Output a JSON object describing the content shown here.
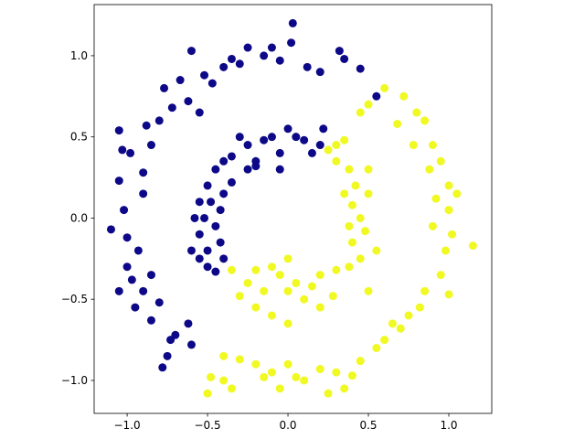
{
  "chart_data": {
    "type": "scatter",
    "xlim": [
      -1.205,
      1.267
    ],
    "ylim": [
      -1.203,
      1.315
    ],
    "xticks": [
      {
        "value": -1.0,
        "label": "−1.0"
      },
      {
        "value": -0.5,
        "label": "−0.5"
      },
      {
        "value": 0.0,
        "label": "0.0"
      },
      {
        "value": 0.5,
        "label": "0.5"
      },
      {
        "value": 1.0,
        "label": "1.0"
      }
    ],
    "yticks": [
      {
        "value": -1.0,
        "label": "−1.0"
      },
      {
        "value": -0.5,
        "label": "−0.5"
      },
      {
        "value": 0.0,
        "label": "0.0"
      },
      {
        "value": 0.5,
        "label": "0.5"
      },
      {
        "value": 1.0,
        "label": "1.0"
      }
    ],
    "series": [
      {
        "color": "#0d0887",
        "x": [
          -1.1,
          -1.05,
          -1.0,
          -1.0,
          -1.02,
          -1.05,
          -1.03,
          -1.05,
          -0.98,
          -0.9,
          -0.9,
          -0.85,
          -0.88,
          -0.8,
          -0.77,
          -0.72,
          -0.67,
          -0.62,
          -0.55,
          -0.52,
          -0.47,
          -0.4,
          -0.35,
          -0.3,
          -0.25,
          -0.15,
          -0.1,
          -0.05,
          0.02,
          0.03,
          0.12,
          0.2,
          0.32,
          0.35,
          0.45,
          0.55,
          -0.6,
          -0.62,
          -0.7,
          -0.75,
          -0.8,
          -0.85,
          -0.9,
          -0.93,
          -0.97,
          -0.78,
          -0.73,
          -0.6,
          -0.85,
          -0.95,
          -0.55,
          -0.5,
          -0.6,
          -0.55,
          -0.5,
          -0.45,
          -0.52,
          -0.55,
          -0.5,
          -0.45,
          -0.4,
          -0.35,
          -0.3,
          -0.25,
          -0.2,
          -0.15,
          -0.1,
          -0.05,
          0.0,
          0.05,
          0.1,
          0.15,
          0.2,
          -0.48,
          -0.42,
          -0.45,
          -0.4,
          -0.35,
          -0.25,
          -0.2,
          -0.58,
          -0.42,
          0.22,
          -0.05,
          -0.4
        ],
        "y": [
          -0.07,
          -0.45,
          -0.3,
          -0.12,
          0.05,
          0.23,
          0.42,
          0.54,
          0.4,
          0.28,
          0.15,
          0.45,
          0.57,
          0.6,
          0.8,
          0.68,
          0.85,
          0.72,
          0.65,
          0.88,
          0.83,
          0.93,
          0.98,
          0.95,
          1.05,
          1.0,
          1.05,
          0.97,
          1.08,
          1.2,
          0.93,
          0.9,
          1.03,
          0.98,
          0.92,
          0.75,
          1.03,
          -0.65,
          -0.72,
          -0.85,
          -0.52,
          -0.35,
          -0.45,
          -0.2,
          -0.38,
          -0.92,
          -0.75,
          -0.78,
          -0.63,
          -0.55,
          -0.25,
          -0.2,
          -0.2,
          -0.1,
          -0.3,
          -0.33,
          0.0,
          0.1,
          0.2,
          0.3,
          0.35,
          0.38,
          0.5,
          0.45,
          0.35,
          0.48,
          0.5,
          0.4,
          0.55,
          0.5,
          0.48,
          0.4,
          0.45,
          0.1,
          0.05,
          -0.05,
          0.15,
          0.22,
          0.3,
          0.32,
          0.0,
          -0.15,
          0.55,
          0.3,
          -0.25
        ]
      },
      {
        "color": "#f0f921",
        "x": [
          0.6,
          0.72,
          0.8,
          0.85,
          0.9,
          0.95,
          1.0,
          1.05,
          1.0,
          1.02,
          1.15,
          0.98,
          0.95,
          1.0,
          0.85,
          0.82,
          0.75,
          0.7,
          0.6,
          0.55,
          0.45,
          0.4,
          0.35,
          0.3,
          0.2,
          0.1,
          0.05,
          -0.1,
          -0.15,
          -0.2,
          -0.3,
          -0.35,
          -0.4,
          -0.48,
          -0.5,
          -0.4,
          0.0,
          0.45,
          0.5,
          0.68,
          0.78,
          0.88,
          0.92,
          0.9,
          0.65,
          0.25,
          -0.05,
          0.25,
          0.3,
          0.38,
          0.42,
          0.35,
          0.4,
          0.45,
          0.38,
          0.48,
          0.4,
          0.45,
          0.38,
          0.3,
          0.2,
          0.15,
          0.05,
          0.0,
          -0.05,
          -0.1,
          -0.15,
          -0.2,
          -0.25,
          -0.3,
          -0.35,
          0.0,
          0.1,
          0.2,
          -0.1,
          0.0,
          0.5,
          0.5,
          0.55,
          0.5,
          0.3,
          0.35,
          0.28,
          -0.2
        ],
        "y": [
          0.8,
          0.75,
          0.65,
          0.6,
          0.45,
          0.35,
          0.2,
          0.15,
          0.05,
          -0.1,
          -0.17,
          -0.2,
          -0.35,
          -0.47,
          -0.45,
          -0.55,
          -0.6,
          -0.68,
          -0.75,
          -0.8,
          -0.88,
          -0.97,
          -1.05,
          -0.95,
          -0.93,
          -1.0,
          -0.98,
          -0.95,
          -0.98,
          -0.9,
          -0.87,
          -1.05,
          -1.0,
          -0.98,
          -1.08,
          -0.85,
          -0.9,
          0.65,
          0.7,
          0.58,
          0.45,
          0.3,
          0.12,
          -0.05,
          -0.65,
          -1.08,
          -1.05,
          0.42,
          0.35,
          0.3,
          0.2,
          0.15,
          0.08,
          0.0,
          -0.05,
          -0.08,
          -0.15,
          -0.25,
          -0.3,
          -0.32,
          -0.35,
          -0.42,
          -0.4,
          -0.45,
          -0.35,
          -0.3,
          -0.45,
          -0.32,
          -0.4,
          -0.48,
          -0.32,
          -0.25,
          -0.5,
          -0.55,
          -0.6,
          -0.65,
          0.3,
          0.15,
          -0.2,
          -0.45,
          0.45,
          0.48,
          -0.48,
          -0.55
        ]
      }
    ]
  }
}
